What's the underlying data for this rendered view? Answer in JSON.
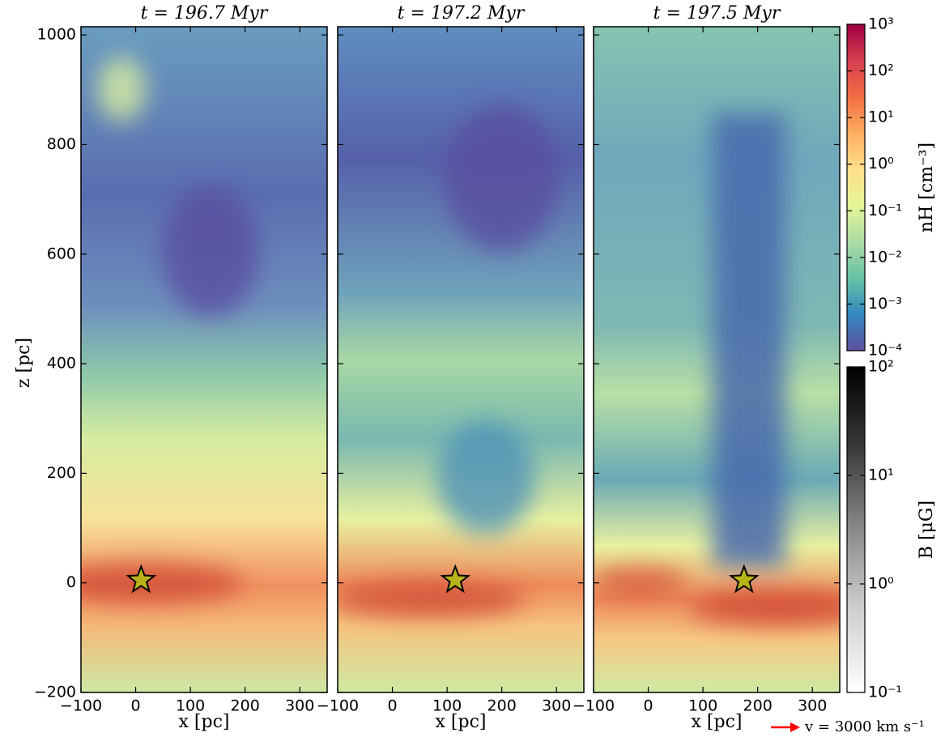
{
  "chart_data": [
    {
      "type": "map",
      "title": "t = 196.7 Myr",
      "xlabel": "x [pc]",
      "ylabel": "z [pc]",
      "xlim": [
        -100,
        350
      ],
      "ylim": [
        -200,
        1015
      ],
      "xticks": [
        {
          "value": -100,
          "label": "−100"
        },
        0,
        100,
        200,
        300
      ],
      "yticks": [
        {
          "value": -200,
          "label": "−200"
        },
        0,
        200,
        400,
        600,
        800,
        1000
      ],
      "star": [
        10,
        5
      ]
    },
    {
      "type": "map",
      "title": "t = 197.2 Myr",
      "xlabel": "x [pc]",
      "xlim": [
        -100,
        350
      ],
      "ylim": [
        -200,
        1015
      ],
      "xticks": [
        {
          "value": -100,
          "label": "−100"
        },
        0,
        100,
        200,
        300
      ],
      "star": [
        115,
        5
      ]
    },
    {
      "type": "map",
      "title": "t = 197.5 Myr",
      "xlabel": "x [pc]",
      "xlim": [
        -100,
        350
      ],
      "ylim": [
        -200,
        1015
      ],
      "xticks": [
        {
          "value": -100,
          "label": "−100"
        },
        0,
        100,
        200,
        300
      ],
      "star": [
        175,
        5
      ],
      "legend_label": "v = 3000 km s⁻¹",
      "legend_color": "#ff0000"
    },
    {
      "type": "colorbar",
      "label": "nH [cm⁻³]",
      "log": true,
      "ylim": [
        0.0001,
        1000
      ],
      "yticks": [
        {
          "value": 0.0001,
          "label": "10⁻⁴"
        },
        {
          "value": 0.001,
          "label": "10⁻³"
        },
        {
          "value": 0.01,
          "label": "10⁻²"
        },
        {
          "value": 0.1,
          "label": "10⁻¹"
        },
        {
          "value": 1,
          "label": "10⁰"
        },
        {
          "value": 10,
          "label": "10¹"
        },
        {
          "value": 100,
          "label": "10²"
        },
        {
          "value": 1000,
          "label": "10³"
        }
      ],
      "colors": [
        "#5e4fa2",
        "#3288bd",
        "#66c2a5",
        "#abdda4",
        "#e6f598",
        "#fee08b",
        "#fdae61",
        "#f46d43",
        "#d53e4f",
        "#9e0142"
      ]
    },
    {
      "type": "colorbar",
      "label": "B [μG]",
      "log": true,
      "ylim": [
        0.1,
        100
      ],
      "yticks": [
        {
          "value": 0.1,
          "label": "10⁻¹"
        },
        {
          "value": 1,
          "label": "10⁰"
        },
        {
          "value": 10,
          "label": "10¹"
        },
        {
          "value": 100,
          "label": "10²"
        }
      ],
      "colors": [
        "#ffffff",
        "#d0d0d0",
        "#8a8a8a",
        "#3a3a3a",
        "#000000"
      ]
    }
  ]
}
